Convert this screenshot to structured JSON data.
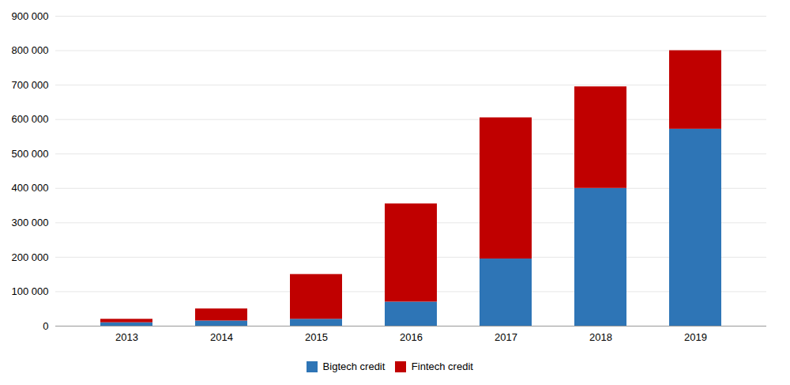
{
  "chart_data": {
    "type": "bar",
    "stacked": true,
    "categories": [
      "2013",
      "2014",
      "2015",
      "2016",
      "2017",
      "2018",
      "2019"
    ],
    "series": [
      {
        "name": "Bigtech credit",
        "color": "#2E75B6",
        "values": [
          10000,
          15000,
          20000,
          70000,
          195000,
          400000,
          572000
        ]
      },
      {
        "name": "Fintech credit",
        "color": "#C00000",
        "values": [
          10000,
          35000,
          130000,
          285000,
          410000,
          295000,
          228000
        ]
      }
    ],
    "ylim": [
      0,
      900000
    ],
    "yticks": [
      0,
      {
        "value": 100000,
        "label": "100 000"
      },
      {
        "value": 200000,
        "label": "200 000"
      },
      {
        "value": 300000,
        "label": "300 000"
      },
      {
        "value": 400000,
        "label": "400 000"
      },
      {
        "value": 500000,
        "label": "500 000"
      },
      {
        "value": 600000,
        "label": "600 000"
      },
      {
        "value": 700000,
        "label": "700 000"
      },
      {
        "value": 800000,
        "label": "800 000"
      },
      {
        "value": 900000,
        "label": "900 000"
      }
    ],
    "grid": true,
    "legend": "bottom"
  }
}
